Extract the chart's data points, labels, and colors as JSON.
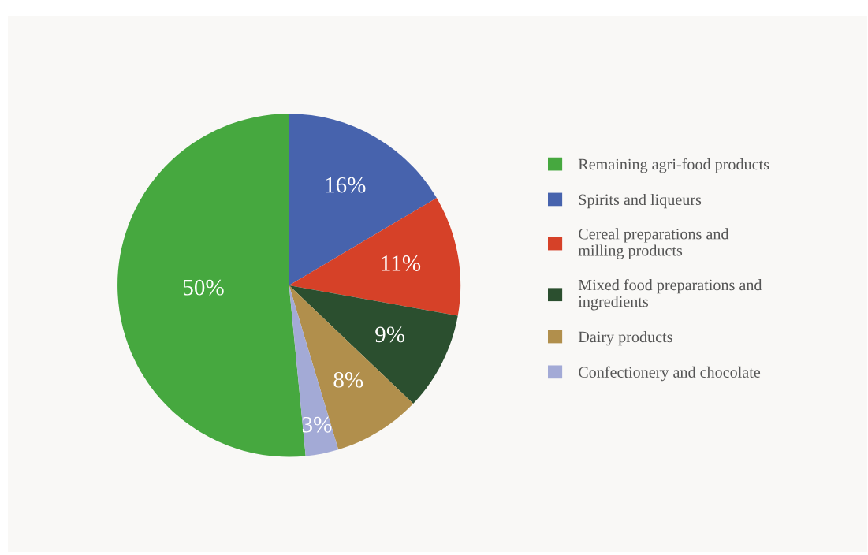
{
  "chart_data": {
    "type": "pie",
    "categories": [
      "Remaining agri-food products",
      "Spirits and liqueurs",
      "Cereal preparations and\nmilling products",
      "Mixed food preparations and\ningredients",
      "Dairy products",
      "Confectionery and chocolate"
    ],
    "values": [
      50,
      16,
      11,
      9,
      8,
      3
    ],
    "colors": [
      "#46a83f",
      "#4763ad",
      "#d64128",
      "#2b4f2f",
      "#b18f4c",
      "#a3aad6"
    ],
    "value_labels": [
      "50%",
      "16%",
      "11%",
      "9%",
      "8%",
      "3%"
    ],
    "legend": "right"
  }
}
